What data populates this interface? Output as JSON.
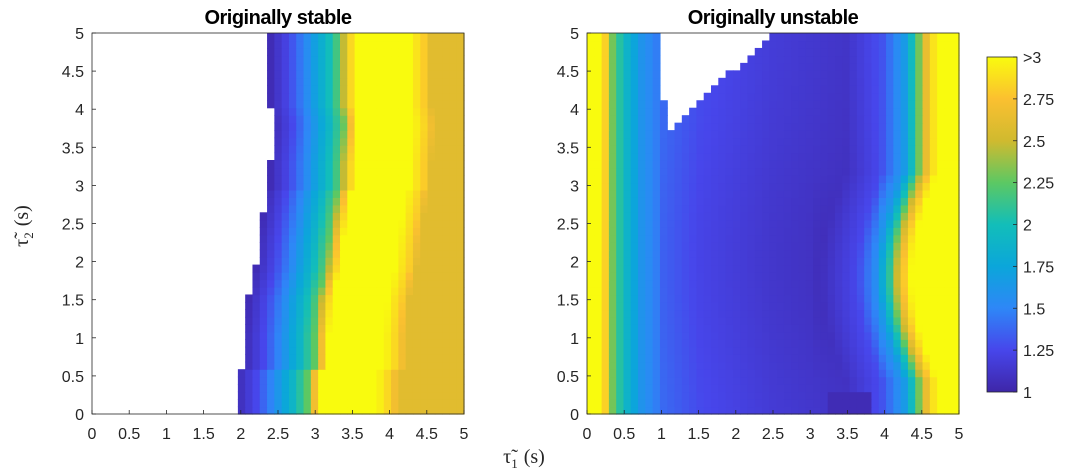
{
  "chart_data": {
    "type": "heatmap",
    "xlabel": {
      "symbol": "τ̃",
      "subscript": "1",
      "unit": "(s)"
    },
    "ylabel": {
      "symbol": "τ̃",
      "subscript": "2",
      "unit": "(s)"
    },
    "xlim": [
      0,
      5
    ],
    "ylim": [
      0,
      5
    ],
    "xticks": [
      "0",
      "0.5",
      "1",
      "1.5",
      "2",
      "2.5",
      "3",
      "3.5",
      "4",
      "4.5",
      "5"
    ],
    "yticks": [
      "0",
      "0.5",
      "1",
      "1.5",
      "2",
      "2.5",
      "3",
      "3.5",
      "4",
      "4.5",
      "5"
    ],
    "colormap": "parula",
    "color_range": [
      1,
      3
    ],
    "colorbar_ticks": [
      "1",
      "1.25",
      "1.5",
      "1.75",
      "2",
      "2.25",
      "2.5",
      "2.75",
      ">3"
    ],
    "panels": [
      {
        "title": "Originally stable",
        "white_region": "left of stability boundary (no value)",
        "boundary": [
          [
            0.0,
            1.95
          ],
          [
            0.6,
            1.95
          ],
          [
            0.6,
            2.05
          ],
          [
            1.0,
            2.05
          ],
          [
            1.5,
            2.1
          ],
          [
            1.9,
            2.2
          ],
          [
            2.3,
            2.25
          ],
          [
            2.6,
            2.3
          ],
          [
            2.9,
            2.35
          ],
          [
            3.0,
            2.4
          ],
          [
            3.3,
            2.4
          ],
          [
            3.85,
            2.45
          ],
          [
            4.1,
            2.4
          ],
          [
            5.0,
            2.4
          ]
        ],
        "profile": [
          [
            0.0,
            1.05
          ],
          [
            0.25,
            1.25
          ],
          [
            0.5,
            1.55
          ],
          [
            0.75,
            1.9
          ],
          [
            0.95,
            2.25
          ],
          [
            1.05,
            2.7
          ],
          [
            1.15,
            3.0
          ],
          [
            1.9,
            3.0
          ],
          [
            2.1,
            2.8
          ],
          [
            2.2,
            2.6
          ]
        ]
      },
      {
        "title": "Originally unstable",
        "white_region": "triangular region near τ̃1 = 1.0–2.45, τ̃2 = 3.75–5",
        "x_profile": [
          [
            0.0,
            3.0
          ],
          [
            0.15,
            3.0
          ],
          [
            0.22,
            2.75
          ],
          [
            0.3,
            2.3
          ],
          [
            0.45,
            1.95
          ],
          [
            0.7,
            1.6
          ],
          [
            1.0,
            1.4
          ],
          [
            1.5,
            1.28
          ],
          [
            2.5,
            1.18
          ],
          [
            3.5,
            1.12
          ],
          [
            4.0,
            1.3
          ],
          [
            4.3,
            1.65
          ],
          [
            4.45,
            2.1
          ],
          [
            4.55,
            2.5
          ],
          [
            4.65,
            2.8
          ],
          [
            4.75,
            3.0
          ],
          [
            5.0,
            3.0
          ]
        ],
        "right_band_shift": "bulges to lower τ̃1 between τ̃2 ≈ 0.5 and 3"
      }
    ]
  }
}
